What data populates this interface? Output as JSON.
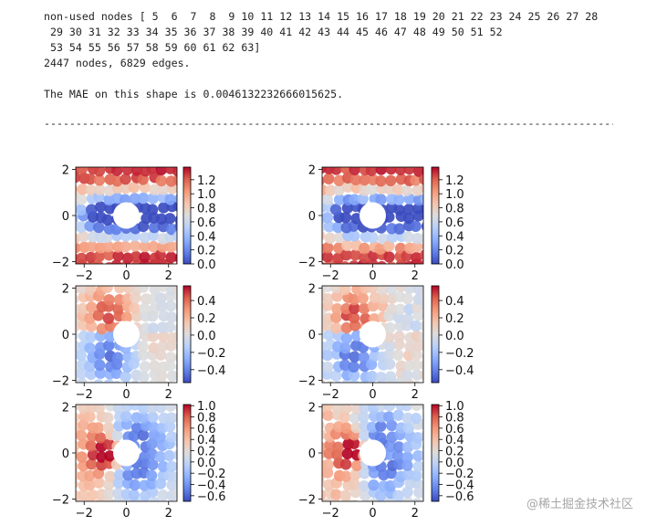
{
  "output": {
    "lines": [
      "non-used nodes [ 5  6  7  8  9 10 11 12 13 14 15 16 17 18 19 20 21 22 23 24 25 26 27 28",
      " 29 30 31 32 33 34 35 36 37 38 39 40 41 42 43 44 45 46 47 48 49 50 51 52",
      " 53 54 55 56 57 58 59 60 61 62 63]",
      "2447 nodes, 6829 edges.",
      "",
      "The MAE on this shape is 0.0046132232666015625."
    ],
    "separator": "----------------------------------------------------------------------------------------------------------------------"
  },
  "watermark": "@稀土掘金技术社区",
  "chart_data": [
    {
      "type": "heatmap",
      "row": 0,
      "col": 0,
      "xlim": [
        -2.4,
        2.4
      ],
      "ylim": [
        -2.1,
        2.1
      ],
      "xticks": [
        "−2",
        "0",
        "2"
      ],
      "yticks": [
        "2",
        "0",
        "−2"
      ],
      "colorbar": {
        "range": [
          0.0,
          1.38
        ],
        "ticks": [
          "1.2",
          "1.0",
          "0.8",
          "0.6",
          "0.4",
          "0.2",
          "0.0"
        ],
        "tick_values": [
          1.2,
          1.0,
          0.8,
          0.6,
          0.4,
          0.2,
          0.0
        ]
      },
      "colormap": "coolwarm",
      "obstacle": "circle"
    },
    {
      "type": "heatmap",
      "row": 0,
      "col": 1,
      "xlim": [
        -2.4,
        2.4
      ],
      "ylim": [
        -2.1,
        2.1
      ],
      "xticks": [
        "−2",
        "0",
        "2"
      ],
      "yticks": [
        "2",
        "0",
        "−2"
      ],
      "colorbar": {
        "range": [
          0.0,
          1.38
        ],
        "ticks": [
          "1.2",
          "1.0",
          "0.8",
          "0.6",
          "0.4",
          "0.2",
          "0.0"
        ],
        "tick_values": [
          1.2,
          1.0,
          0.8,
          0.6,
          0.4,
          0.2,
          0.0
        ]
      },
      "colormap": "coolwarm",
      "obstacle": "circle"
    },
    {
      "type": "heatmap",
      "row": 1,
      "col": 0,
      "xlim": [
        -2.4,
        2.4
      ],
      "ylim": [
        -2.1,
        2.1
      ],
      "xticks": [
        "−2",
        "0",
        "2"
      ],
      "yticks": [
        "2",
        "0",
        "−2"
      ],
      "colorbar": {
        "range": [
          -0.55,
          0.57
        ],
        "ticks": [
          "0.4",
          "0.2",
          "0.0",
          "−0.2",
          "−0.4"
        ],
        "tick_values": [
          0.4,
          0.2,
          0.0,
          -0.2,
          -0.4
        ]
      },
      "colormap": "coolwarm",
      "obstacle": "circle"
    },
    {
      "type": "heatmap",
      "row": 1,
      "col": 1,
      "xlim": [
        -2.4,
        2.4
      ],
      "ylim": [
        -2.1,
        2.1
      ],
      "xticks": [
        "−2",
        "0",
        "2"
      ],
      "yticks": [
        "2",
        "0",
        "−2"
      ],
      "colorbar": {
        "range": [
          -0.55,
          0.57
        ],
        "ticks": [
          "0.4",
          "0.2",
          "0.0",
          "−0.2",
          "−0.4"
        ],
        "tick_values": [
          0.4,
          0.2,
          0.0,
          -0.2,
          -0.4
        ]
      },
      "colormap": "coolwarm",
      "obstacle": "circle"
    },
    {
      "type": "heatmap",
      "row": 2,
      "col": 0,
      "xlim": [
        -2.4,
        2.4
      ],
      "ylim": [
        -2.1,
        2.1
      ],
      "xticks": [
        "−2",
        "0",
        "2"
      ],
      "yticks": [
        "2",
        "0",
        "−2"
      ],
      "colorbar": {
        "range": [
          -0.7,
          1.02
        ],
        "ticks": [
          "1.0",
          "0.8",
          "0.6",
          "0.4",
          "0.2",
          "0.0",
          "−0.2",
          "−0.4",
          "−0.6"
        ],
        "tick_values": [
          1.0,
          0.8,
          0.6,
          0.4,
          0.2,
          0.0,
          -0.2,
          -0.4,
          -0.6
        ]
      },
      "colormap": "coolwarm",
      "obstacle": "circle"
    },
    {
      "type": "heatmap",
      "row": 2,
      "col": 1,
      "xlim": [
        -2.4,
        2.4
      ],
      "ylim": [
        -2.1,
        2.1
      ],
      "xticks": [
        "−2",
        "0",
        "2"
      ],
      "yticks": [
        "2",
        "0",
        "−2"
      ],
      "colorbar": {
        "range": [
          -0.7,
          1.02
        ],
        "ticks": [
          "1.0",
          "0.8",
          "0.6",
          "0.4",
          "0.2",
          "0.0",
          "−0.2",
          "−0.4",
          "−0.6"
        ],
        "tick_values": [
          1.0,
          0.8,
          0.6,
          0.4,
          0.2,
          0.0,
          -0.2,
          -0.4,
          -0.6
        ]
      },
      "colormap": "coolwarm",
      "obstacle": "circle"
    }
  ]
}
